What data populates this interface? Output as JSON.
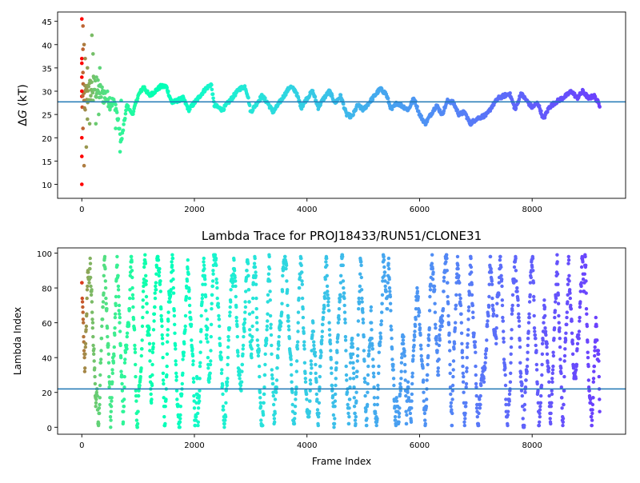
{
  "chart_data": [
    {
      "type": "scatter",
      "title": "",
      "xlabel": "",
      "ylabel": "ΔG (kT)",
      "ylabel_italic_part": "G",
      "xlim": [
        -430,
        9660
      ],
      "ylim": [
        7,
        47
      ],
      "xticks": [
        0,
        2000,
        4000,
        6000,
        8000
      ],
      "yticks": [
        10,
        15,
        20,
        25,
        30,
        35,
        40,
        45
      ],
      "grid": false,
      "legend": "none",
      "colormap": "rainbow (red at early frames → violet at late frames)",
      "hline": {
        "y": 27.7,
        "color": "#1f77b4"
      },
      "x_max": 9200,
      "profile": [
        [
          0,
          27.8
        ],
        [
          200,
          31
        ],
        [
          400,
          29
        ],
        [
          600,
          27
        ],
        [
          700,
          19
        ],
        [
          800,
          27
        ],
        [
          900,
          25
        ],
        [
          1000,
          29
        ],
        [
          1100,
          31
        ],
        [
          1200,
          29
        ],
        [
          1300,
          30
        ],
        [
          1400,
          31
        ],
        [
          1500,
          31
        ],
        [
          1600,
          27.5
        ],
        [
          1800,
          28.5
        ],
        [
          1900,
          26
        ],
        [
          2000,
          27.5
        ],
        [
          2200,
          30.5
        ],
        [
          2300,
          31.5
        ],
        [
          2350,
          27
        ],
        [
          2500,
          26
        ],
        [
          2700,
          29
        ],
        [
          2800,
          30.5
        ],
        [
          2900,
          31
        ],
        [
          2950,
          29
        ],
        [
          3000,
          25.5
        ],
        [
          3200,
          29
        ],
        [
          3300,
          27.5
        ],
        [
          3400,
          25.5
        ],
        [
          3700,
          31
        ],
        [
          3800,
          30
        ],
        [
          3900,
          26.5
        ],
        [
          4000,
          28.5
        ],
        [
          4100,
          30
        ],
        [
          4200,
          26.5
        ],
        [
          4300,
          28.5
        ],
        [
          4400,
          30
        ],
        [
          4500,
          27.5
        ],
        [
          4600,
          29
        ],
        [
          4700,
          25
        ],
        [
          4800,
          24.5
        ],
        [
          4900,
          27
        ],
        [
          5000,
          26
        ],
        [
          5200,
          29
        ],
        [
          5300,
          30.5
        ],
        [
          5400,
          29.5
        ],
        [
          5500,
          26
        ],
        [
          5600,
          27.5
        ],
        [
          5800,
          26
        ],
        [
          5900,
          28.5
        ],
        [
          6000,
          25
        ],
        [
          6100,
          23
        ],
        [
          6200,
          25
        ],
        [
          6300,
          27
        ],
        [
          6400,
          25
        ],
        [
          6500,
          28
        ],
        [
          6600,
          27.5
        ],
        [
          6700,
          25
        ],
        [
          6800,
          25.5
        ],
        [
          6900,
          23
        ],
        [
          7000,
          24
        ],
        [
          7200,
          25
        ],
        [
          7300,
          27
        ],
        [
          7400,
          28.5
        ],
        [
          7600,
          29.5
        ],
        [
          7700,
          26
        ],
        [
          7800,
          29.5
        ],
        [
          7900,
          28
        ],
        [
          8000,
          26.5
        ],
        [
          8100,
          27.5
        ],
        [
          8200,
          24
        ],
        [
          8300,
          26.5
        ],
        [
          8400,
          27.5
        ],
        [
          8600,
          29
        ],
        [
          8700,
          30
        ],
        [
          8800,
          28.5
        ],
        [
          8900,
          30
        ],
        [
          9000,
          28.5
        ],
        [
          9100,
          29
        ],
        [
          9200,
          27
        ]
      ],
      "early_outliers": [
        [
          0,
          45.5
        ],
        [
          0,
          37
        ],
        [
          0,
          36
        ],
        [
          0,
          33
        ],
        [
          0,
          30
        ],
        [
          0,
          20
        ],
        [
          0,
          16
        ],
        [
          0,
          10
        ],
        [
          20,
          44
        ],
        [
          20,
          39
        ],
        [
          20,
          34
        ],
        [
          20,
          22
        ],
        [
          40,
          40
        ],
        [
          40,
          28
        ],
        [
          40,
          14
        ],
        [
          60,
          26
        ],
        [
          60,
          37
        ],
        [
          80,
          30
        ],
        [
          80,
          18
        ],
        [
          100,
          24
        ],
        [
          100,
          35
        ],
        [
          120,
          31
        ],
        [
          140,
          23
        ],
        [
          160,
          29
        ],
        [
          180,
          42
        ],
        [
          200,
          28
        ],
        [
          200,
          38
        ],
        [
          250,
          23
        ],
        [
          260,
          33
        ],
        [
          300,
          25
        ],
        [
          320,
          35
        ],
        [
          400,
          30
        ],
        [
          500,
          26
        ],
        [
          600,
          22
        ],
        [
          680,
          17
        ],
        [
          700,
          28
        ]
      ]
    },
    {
      "type": "scatter",
      "title": "Lambda Trace for PROJ18433/RUN51/CLONE31",
      "xlabel": "Frame Index",
      "ylabel": "Lambda Index",
      "xlim": [
        -430,
        9660
      ],
      "ylim": [
        -4,
        103
      ],
      "xticks": [
        0,
        2000,
        4000,
        6000,
        8000
      ],
      "yticks": [
        0,
        20,
        40,
        60,
        80,
        100
      ],
      "grid": false,
      "legend": "none",
      "colormap": "rainbow (red at early frames → violet at late frames)",
      "hline": {
        "y": 22,
        "color": "#1f77b4"
      },
      "x_max": 9200,
      "lambda_range": [
        0,
        99
      ]
    }
  ],
  "colors": {
    "axis": "#000000",
    "hline": "#1f77b4",
    "background": "#ffffff"
  }
}
